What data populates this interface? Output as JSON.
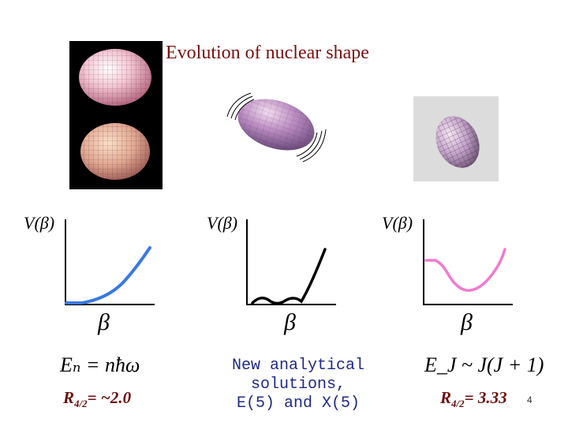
{
  "title": "Evolution of nuclear shape",
  "potentials": [
    {
      "y_label": "V(β)",
      "x_label": "β",
      "curve_color": "#3a78e0"
    },
    {
      "y_label": "V(β)",
      "x_label": "β",
      "curve_color": "#000000"
    },
    {
      "y_label": "V(β)",
      "x_label": "β",
      "curve_color": "#f07ad0"
    }
  ],
  "left_formula": "Eₙ = nħω",
  "left_ratio": {
    "prefix": "R",
    "sub": "4/2",
    "value": "= ~2.0"
  },
  "middle_text": {
    "line1": "New analytical solutions,",
    "line2": "E(5) and X(5)"
  },
  "right_formula": "E_J ~ J(J + 1)",
  "right_ratio": {
    "prefix": "R",
    "sub": "4/2",
    "value": "= 3.33"
  },
  "page_number": "4"
}
